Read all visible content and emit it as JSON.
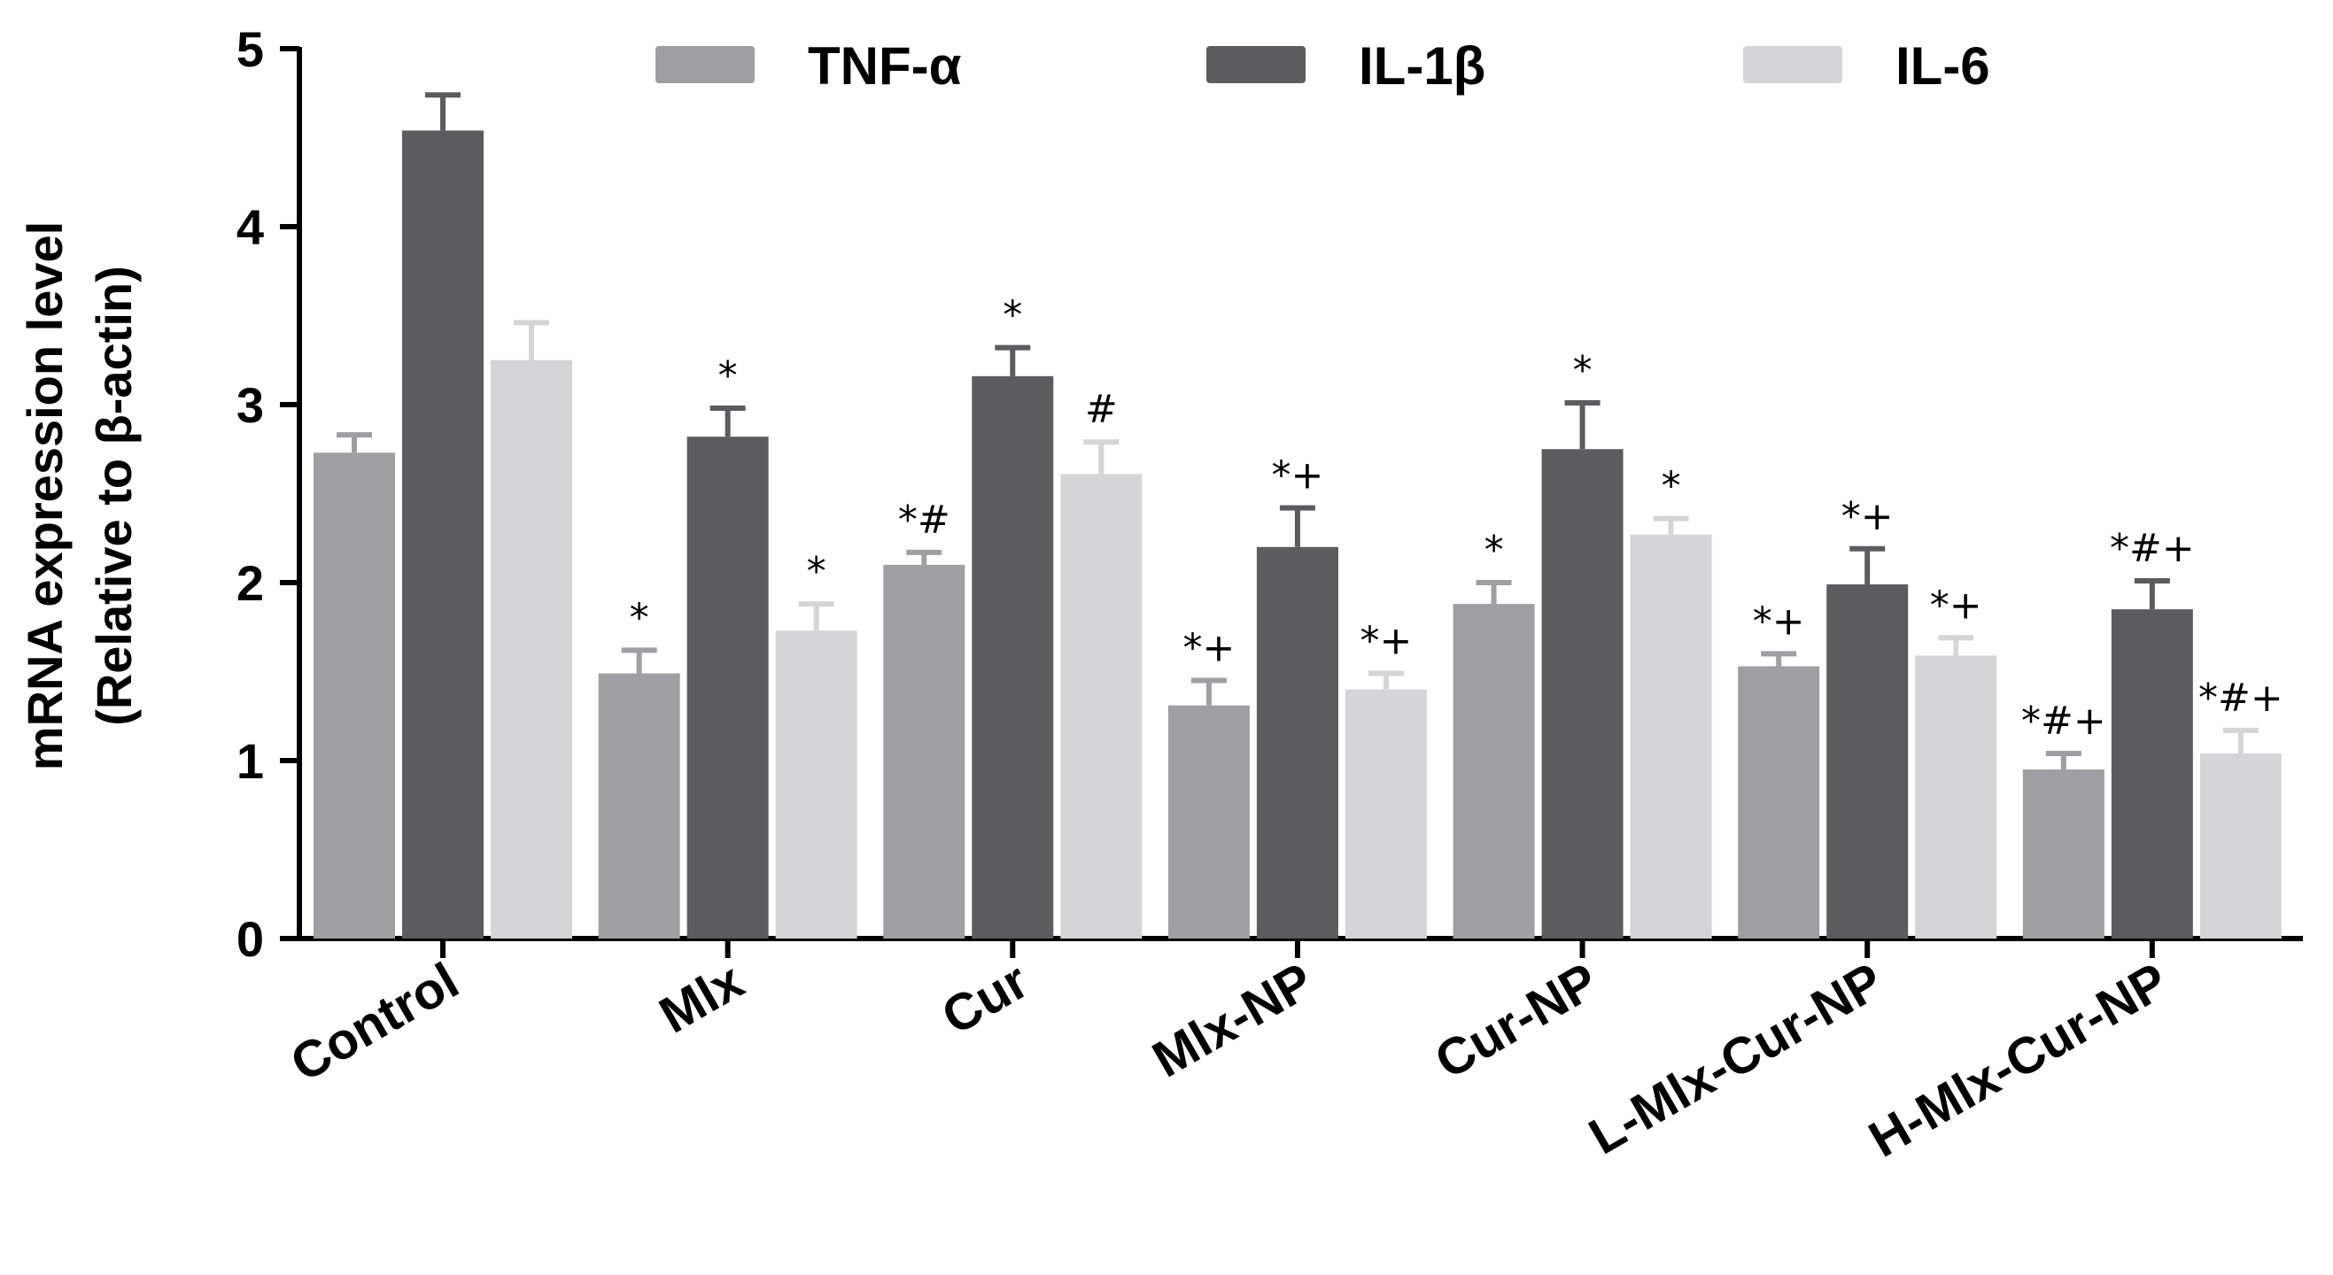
{
  "chart_data": {
    "type": "bar",
    "title": "",
    "xlabel": "",
    "ylabel_line1": "mRNA expression level",
    "ylabel_line2": "(Relative to β-actin)",
    "ylim": [
      0,
      5
    ],
    "yticks": [
      0,
      1,
      2,
      3,
      4,
      5
    ],
    "grid": false,
    "legend_position": "top",
    "categories": [
      "Control",
      "Mlx",
      "Cur",
      "Mlx-NP",
      "Cur-NP",
      "L-Mlx-Cur-NP",
      "H-Mlx-Cur-NP"
    ],
    "series": [
      {
        "name": "TNF-α",
        "color": "#9e9ea3",
        "values": [
          2.73,
          1.49,
          2.1,
          1.31,
          1.88,
          1.53,
          0.95
        ],
        "errors": [
          0.1,
          0.13,
          0.07,
          0.14,
          0.12,
          0.07,
          0.09
        ],
        "annotations": [
          "",
          "*",
          "*#",
          "*+",
          "*",
          "*+",
          "*#+"
        ]
      },
      {
        "name": "IL-1β",
        "color": "#5c5c5f",
        "values": [
          4.54,
          2.82,
          3.16,
          2.2,
          2.75,
          1.99,
          1.85
        ],
        "errors": [
          0.2,
          0.16,
          0.16,
          0.22,
          0.26,
          0.2,
          0.16
        ],
        "annotations": [
          "",
          "*",
          "*",
          "*+",
          "*",
          "*+",
          "*#+"
        ]
      },
      {
        "name": "IL-6",
        "color": "#d5d5d7",
        "values": [
          3.25,
          1.73,
          2.61,
          1.4,
          2.27,
          1.59,
          1.04
        ],
        "errors": [
          0.21,
          0.15,
          0.18,
          0.09,
          0.09,
          0.1,
          0.13
        ],
        "annotations": [
          "",
          "*",
          "#",
          "*+",
          "*",
          "*+",
          "*#+"
        ]
      }
    ]
  }
}
